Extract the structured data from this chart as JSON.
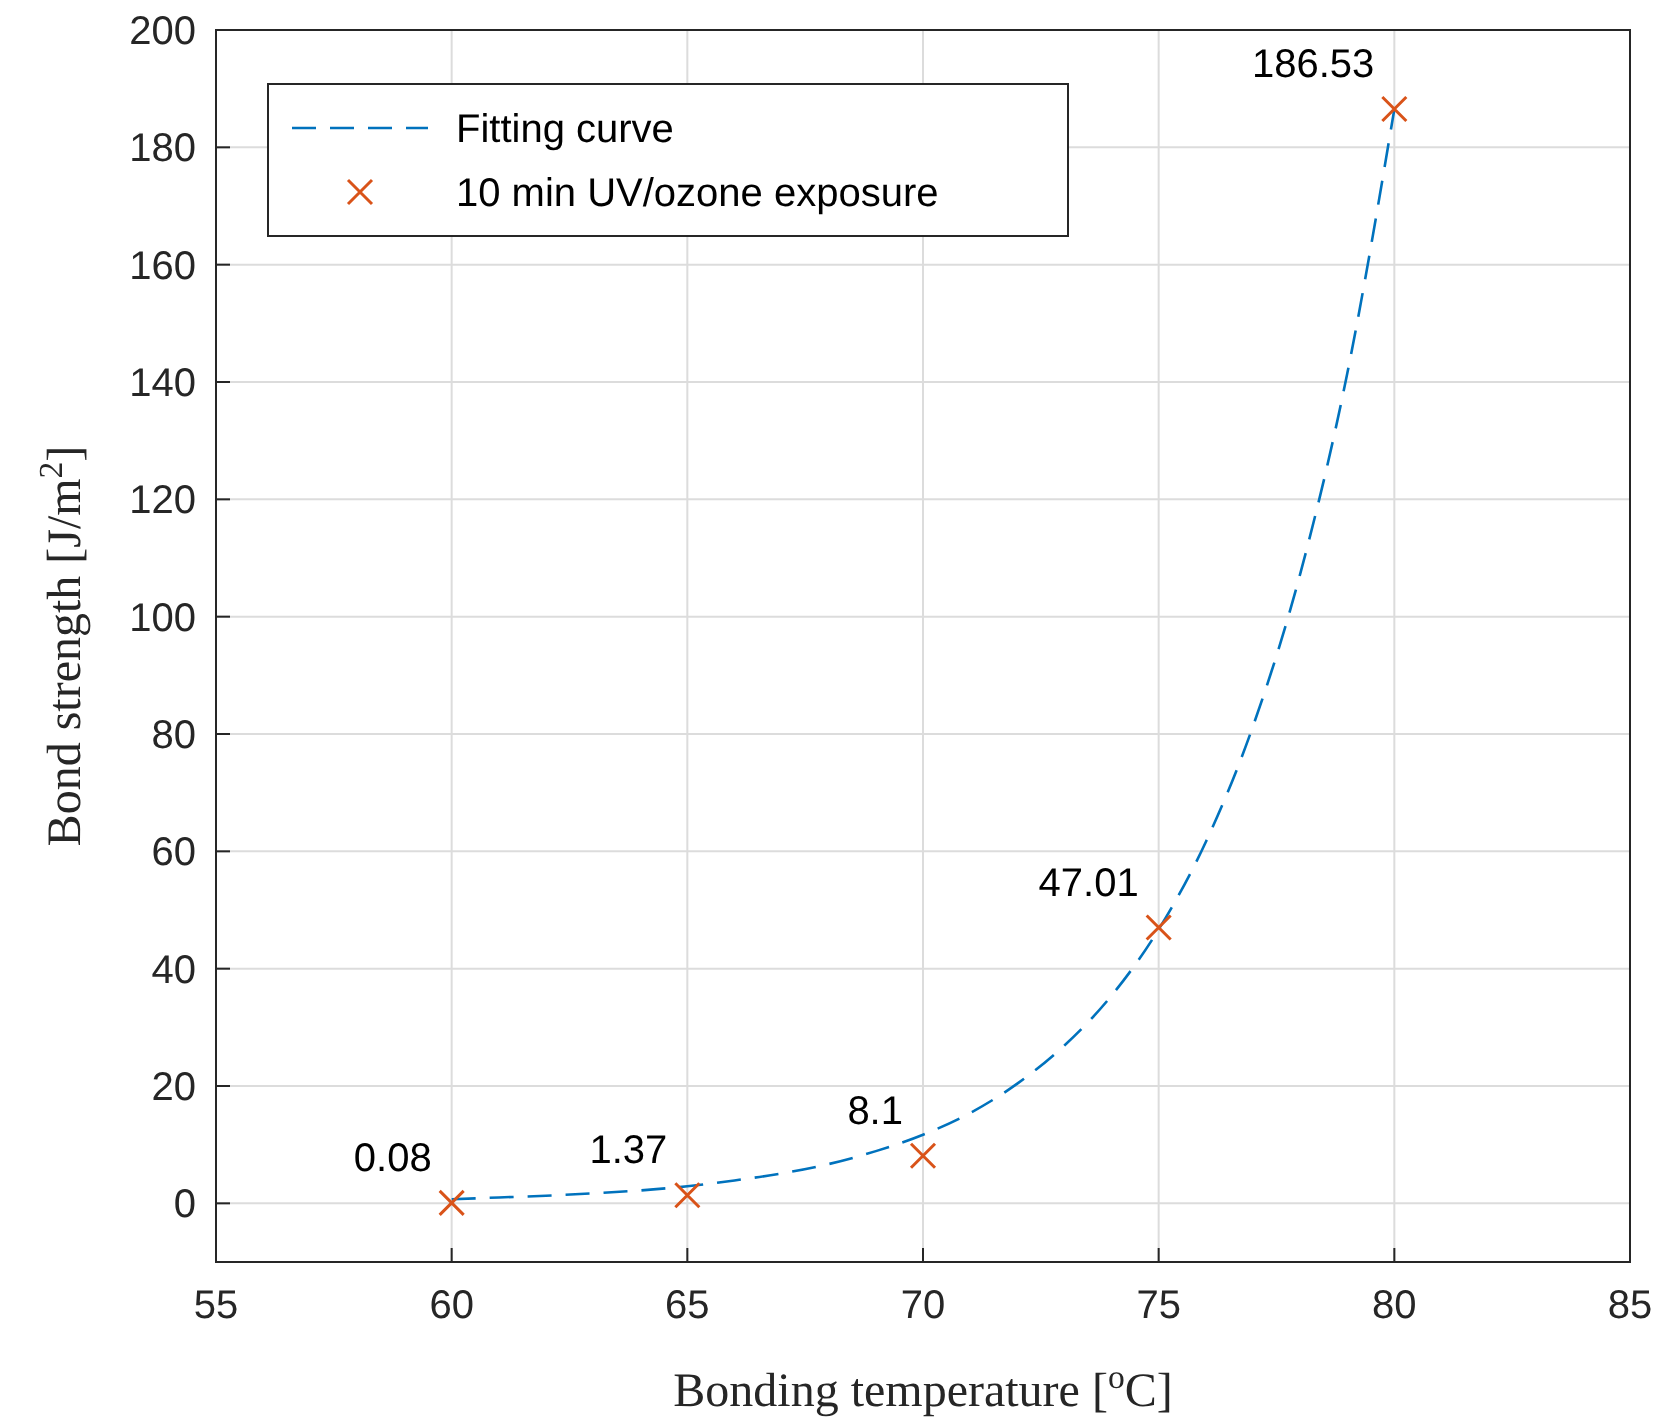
{
  "chart_data": {
    "type": "scatter",
    "xlabel": "Bonding temperature [$^{o}$C]",
    "ylabel": "Bond strength [J/m$^{2}$]",
    "xlim": [
      55,
      85
    ],
    "xticks": [
      55,
      60,
      65,
      70,
      75,
      80,
      85
    ],
    "ylim": [
      -10,
      200
    ],
    "yticks": [
      0,
      20,
      40,
      60,
      80,
      100,
      120,
      140,
      160,
      180,
      200
    ],
    "grid": true,
    "legend": "top left",
    "series": [
      {
        "name": "Fitting curve",
        "type": "line",
        "line_style": "dashed",
        "marker": "none",
        "color": "#0072bd",
        "x": [
          60,
          61,
          62,
          63,
          64,
          65,
          66,
          67,
          68,
          69,
          70,
          71,
          72,
          73,
          74,
          75,
          76,
          77,
          78,
          79,
          80
        ],
        "values": [
          0.7,
          1,
          1.3,
          1.7,
          2.2,
          2.9,
          3.9,
          5.1,
          6.7,
          8.9,
          11.7,
          15.4,
          20.4,
          26.9,
          35.4,
          46.7,
          61.6,
          81.3,
          107.2,
          141.4,
          186.5
        ]
      },
      {
        "name": "10 min UV/ozone exposure",
        "marker": "cross",
        "color": "#d95319",
        "x": [
          60,
          65,
          70,
          75,
          80
        ],
        "values": [
          0.08,
          1.37,
          8.1,
          47.01,
          186.53
        ],
        "value_labels": [
          "0.08",
          "1.37",
          "8.1",
          "47.01",
          "186.53"
        ]
      }
    ]
  }
}
